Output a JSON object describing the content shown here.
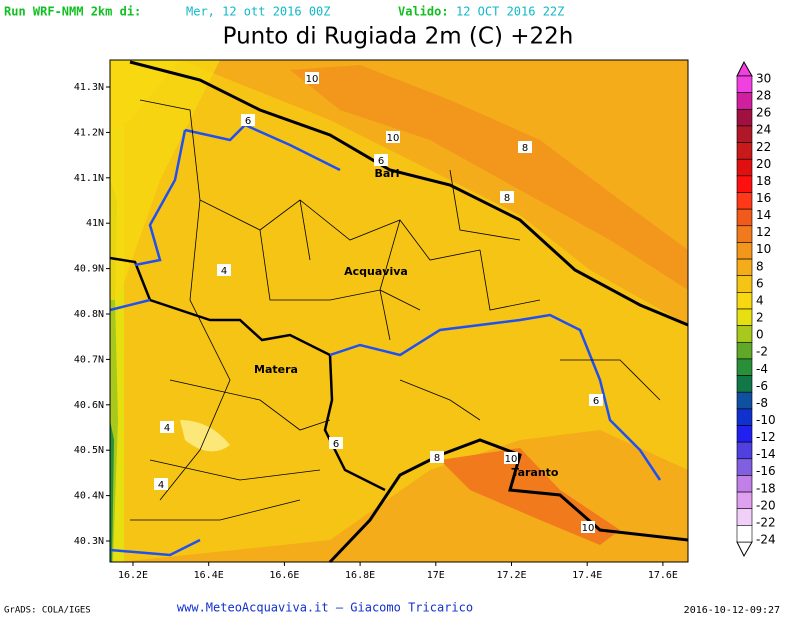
{
  "header": {
    "run_label": "Run WRF-NMM 2km di:",
    "run_date": "Mer, 12 ott 2016 00Z",
    "valid_label": "Valido:",
    "valid_date": "12 OCT 2016 22Z"
  },
  "title": "Punto di Rugiada 2m (C) +22h",
  "lat_labels": [
    "41.3N",
    "41.2N",
    "41.1N",
    "41N",
    "40.9N",
    "40.8N",
    "40.7N",
    "40.6N",
    "40.5N",
    "40.4N",
    "40.3N"
  ],
  "lon_labels": [
    "16.2E",
    "16.4E",
    "16.6E",
    "16.8E",
    "17E",
    "17.2E",
    "17.4E",
    "17.6E"
  ],
  "cities": [
    "Bari",
    "Acquaviva",
    "Matera",
    "Taranto"
  ],
  "contour_labels": [
    "10",
    "10",
    "8",
    "6",
    "6",
    "8",
    "4",
    "6",
    "8",
    "10",
    "6",
    "10",
    "4",
    "4"
  ],
  "colorbar": [
    {
      "label": "30",
      "color": "#f040e0"
    },
    {
      "label": "28",
      "color": "#d020a0"
    },
    {
      "label": "26",
      "color": "#a01040"
    },
    {
      "label": "24",
      "color": "#b01828"
    },
    {
      "label": "22",
      "color": "#c81a1a"
    },
    {
      "label": "20",
      "color": "#e01010"
    },
    {
      "label": "18",
      "color": "#ff1010"
    },
    {
      "label": "16",
      "color": "#ff3818"
    },
    {
      "label": "14",
      "color": "#f05a1a"
    },
    {
      "label": "12",
      "color": "#f07a1c"
    },
    {
      "label": "10",
      "color": "#f2961c"
    },
    {
      "label": "8",
      "color": "#f4ac1a"
    },
    {
      "label": "6",
      "color": "#f6c414"
    },
    {
      "label": "4",
      "color": "#f8d810"
    },
    {
      "label": "2",
      "color": "#e6e010"
    },
    {
      "label": "0",
      "color": "#a8c81c"
    },
    {
      "label": "-2",
      "color": "#60a828"
    },
    {
      "label": "-4",
      "color": "#289038"
    },
    {
      "label": "-6",
      "color": "#107848"
    },
    {
      "label": "-8",
      "color": "#1050a0"
    },
    {
      "label": "-10",
      "color": "#1030d0"
    },
    {
      "label": "-12",
      "color": "#2020f0"
    },
    {
      "label": "-14",
      "color": "#5040e0"
    },
    {
      "label": "-16",
      "color": "#8060e0"
    },
    {
      "label": "-18",
      "color": "#c080e8"
    },
    {
      "label": "-20",
      "color": "#e0a0f0"
    },
    {
      "label": "-22",
      "color": "#f0d0f8"
    },
    {
      "label": "-24",
      "color": "#ffffff"
    }
  ],
  "footer": {
    "left": "GrADS: COLA/IGES",
    "center": "www.MeteoAcquaviva.it – Giacomo Tricarico",
    "right": "2016-10-12-09:27"
  }
}
